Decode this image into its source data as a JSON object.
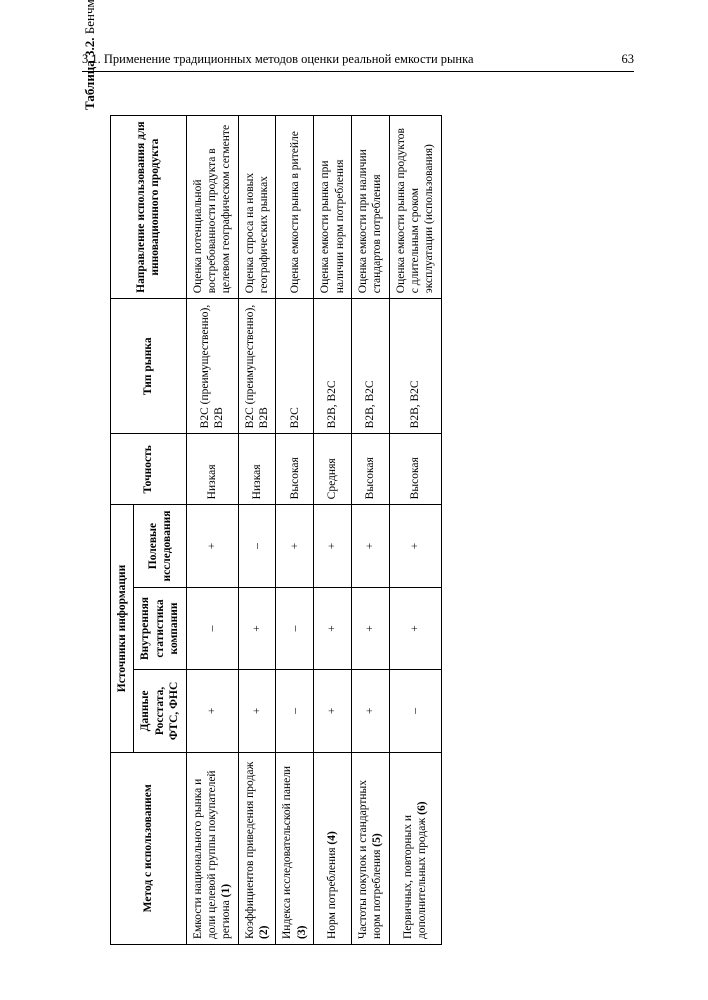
{
  "header": {
    "section": "3.1. Применение традиционных методов оценки реальной емкости рынка",
    "page_number": "63"
  },
  "caption": {
    "label": "Таблица 3.2.",
    "title": "Бенчмаркинг методов оценки емкости офлайн-рынка"
  },
  "table": {
    "head": {
      "method": "Метод с использованием",
      "sources_group": "Источники информации",
      "source1": "Данные Росстата, ФТС, ФНС",
      "source2": "Внутренняя статистика компании",
      "source3": "Полевые исследования",
      "accuracy": "Точность",
      "market_type": "Тип рынка",
      "direction": "Направление использования для инновационного продукта"
    },
    "rows": [
      {
        "method": "Емкости национального рынка и доли целевой группы покупателей региона (1)",
        "s1": "+",
        "s2": "–",
        "s3": "+",
        "accuracy": "Низкая",
        "market": "B2C (преимущественно), B2B",
        "direction": "Оценка потенциальной востребованности продукта в целевом географическом сегменте"
      },
      {
        "method": "Коэффициентов приведения продаж (2)",
        "s1": "+",
        "s2": "+",
        "s3": "–",
        "accuracy": "Низкая",
        "market": "B2C (преимущественно), B2B",
        "direction": "Оценка спроса на новых географических рынках"
      },
      {
        "method": "Индекса исследовательской панели (3)",
        "s1": "–",
        "s2": "–",
        "s3": "+",
        "accuracy": "Высокая",
        "market": "B2C",
        "direction": "Оценка емкости рынка в ритейле"
      },
      {
        "method": "Норм потребления (4)",
        "s1": "+",
        "s2": "+",
        "s3": "+",
        "accuracy": "Средняя",
        "market": "B2B, B2C",
        "direction": "Оценка емкости рынка при наличии норм потребления"
      },
      {
        "method": "Частоты покупок и стандартных норм потребления (5)",
        "s1": "+",
        "s2": "+",
        "s3": "+",
        "accuracy": "Высокая",
        "market": "B2B, B2C",
        "direction": "Оценка емкости при наличии стандартов потребления"
      },
      {
        "method": "Первичных, повторных и дополнительных продаж (6)",
        "s1": "–",
        "s2": "+",
        "s3": "+",
        "accuracy": "Высокая",
        "market": "B2B, B2C",
        "direction": "Оценка емкости рынка продуктов с длительным сроком эксплуатации (использования)"
      }
    ]
  },
  "style": {
    "page_bg": "#ffffff",
    "text_color": "#000000",
    "border_color": "#000000",
    "font_family": "Times New Roman",
    "base_font_size_pt": 9,
    "header_font_size_pt": 9.5,
    "caption_font_size_pt": 10
  }
}
